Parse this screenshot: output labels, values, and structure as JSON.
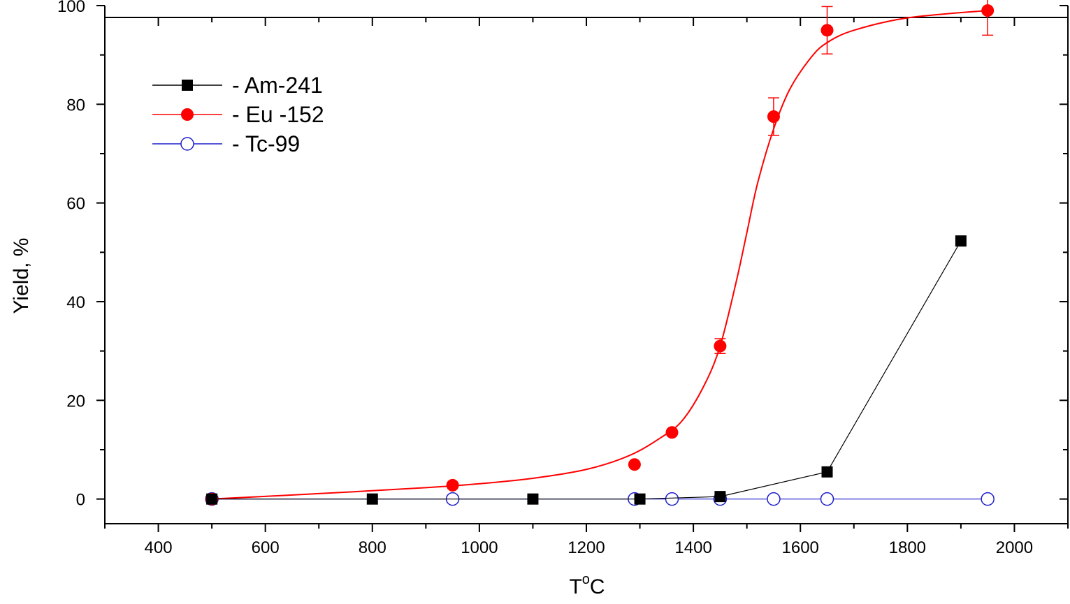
{
  "chart_data": {
    "type": "scatter",
    "xlabel_main": "T",
    "xlabel_sup": "o",
    "xlabel_tail": "C",
    "ylabel": "Yield, %",
    "xlim": [
      300,
      2100
    ],
    "ylim": [
      -5,
      100
    ],
    "x_ticks": [
      400,
      600,
      800,
      1000,
      1200,
      1400,
      1600,
      1800,
      2000
    ],
    "y_ticks": [
      0,
      20,
      40,
      60,
      80,
      100
    ],
    "legend_position": "top-left",
    "series": [
      {
        "name": "- Am-241",
        "color": "#000000",
        "marker": "filled-square",
        "connect": "straight-lines",
        "points": [
          {
            "x": 500,
            "y": 0
          },
          {
            "x": 800,
            "y": 0
          },
          {
            "x": 1100,
            "y": 0
          },
          {
            "x": 1300,
            "y": 0
          },
          {
            "x": 1450,
            "y": 0.5
          },
          {
            "x": 1650,
            "y": 5.5
          },
          {
            "x": 1900,
            "y": 52.3
          }
        ]
      },
      {
        "name": "- Eu -152",
        "color": "#ff0000",
        "marker": "filled-circle",
        "connect": "smooth-fit",
        "points": [
          {
            "x": 500,
            "y": 0
          },
          {
            "x": 950,
            "y": 2.8
          },
          {
            "x": 1290,
            "y": 7.0
          },
          {
            "x": 1360,
            "y": 13.5
          },
          {
            "x": 1450,
            "y": 31.0,
            "err": 1.5
          },
          {
            "x": 1550,
            "y": 77.5,
            "err": 3.8
          },
          {
            "x": 1650,
            "y": 95.0,
            "err": 4.8
          },
          {
            "x": 1950,
            "y": 99.0,
            "err": 5.0
          }
        ],
        "fit_curve": [
          [
            500,
            0
          ],
          [
            700,
            1.1
          ],
          [
            900,
            2.3
          ],
          [
            1000,
            3.1
          ],
          [
            1100,
            4.2
          ],
          [
            1200,
            6.0
          ],
          [
            1280,
            8.8
          ],
          [
            1340,
            12.5
          ],
          [
            1380,
            16.0
          ],
          [
            1420,
            23.0
          ],
          [
            1450,
            31.0
          ],
          [
            1480,
            44.0
          ],
          [
            1500,
            54.0
          ],
          [
            1520,
            64.0
          ],
          [
            1550,
            75.0
          ],
          [
            1580,
            83.0
          ],
          [
            1620,
            89.5
          ],
          [
            1650,
            92.5
          ],
          [
            1700,
            95.0
          ],
          [
            1800,
            97.5
          ],
          [
            1950,
            99.0
          ]
        ]
      },
      {
        "name": "- Tc-99",
        "color": "#1f1fcc",
        "marker": "open-circle",
        "connect": "straight-lines",
        "points": [
          {
            "x": 500,
            "y": 0
          },
          {
            "x": 950,
            "y": 0
          },
          {
            "x": 1290,
            "y": 0
          },
          {
            "x": 1360,
            "y": 0
          },
          {
            "x": 1450,
            "y": 0
          },
          {
            "x": 1550,
            "y": 0
          },
          {
            "x": 1650,
            "y": 0
          },
          {
            "x": 1950,
            "y": 0
          }
        ]
      }
    ]
  }
}
